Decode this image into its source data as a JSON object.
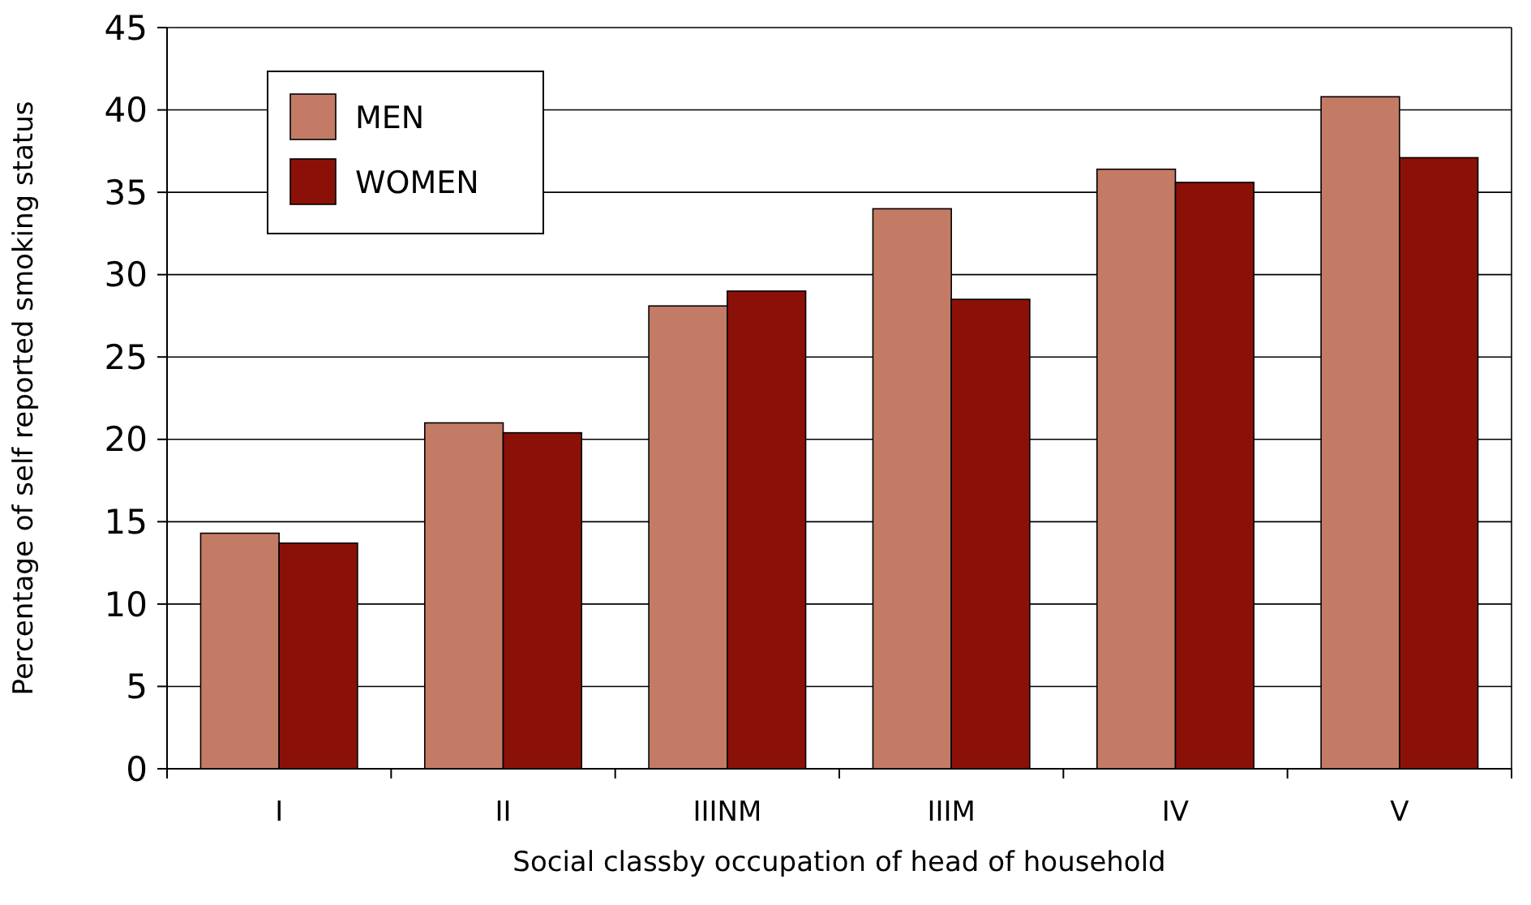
{
  "chart_data": {
    "type": "bar",
    "xlabel": "Social classby occupation of head of household",
    "ylabel": "Percentage of self reported smoking status",
    "categories": [
      "I",
      "II",
      "IIINM",
      "IIIM",
      "IV",
      "V"
    ],
    "series": [
      {
        "name": "MEN",
        "color": "#c47b66",
        "values": [
          14.3,
          21.0,
          28.1,
          34.0,
          36.4,
          40.8
        ]
      },
      {
        "name": "WOMEN",
        "color": "#8b1108",
        "values": [
          13.7,
          20.4,
          29.0,
          28.5,
          35.6,
          37.1
        ]
      }
    ],
    "ylim": [
      0,
      45
    ],
    "yticks": [
      0,
      5,
      10,
      15,
      20,
      25,
      30,
      35,
      40,
      45
    ],
    "grid": "y",
    "legend": "top left"
  }
}
